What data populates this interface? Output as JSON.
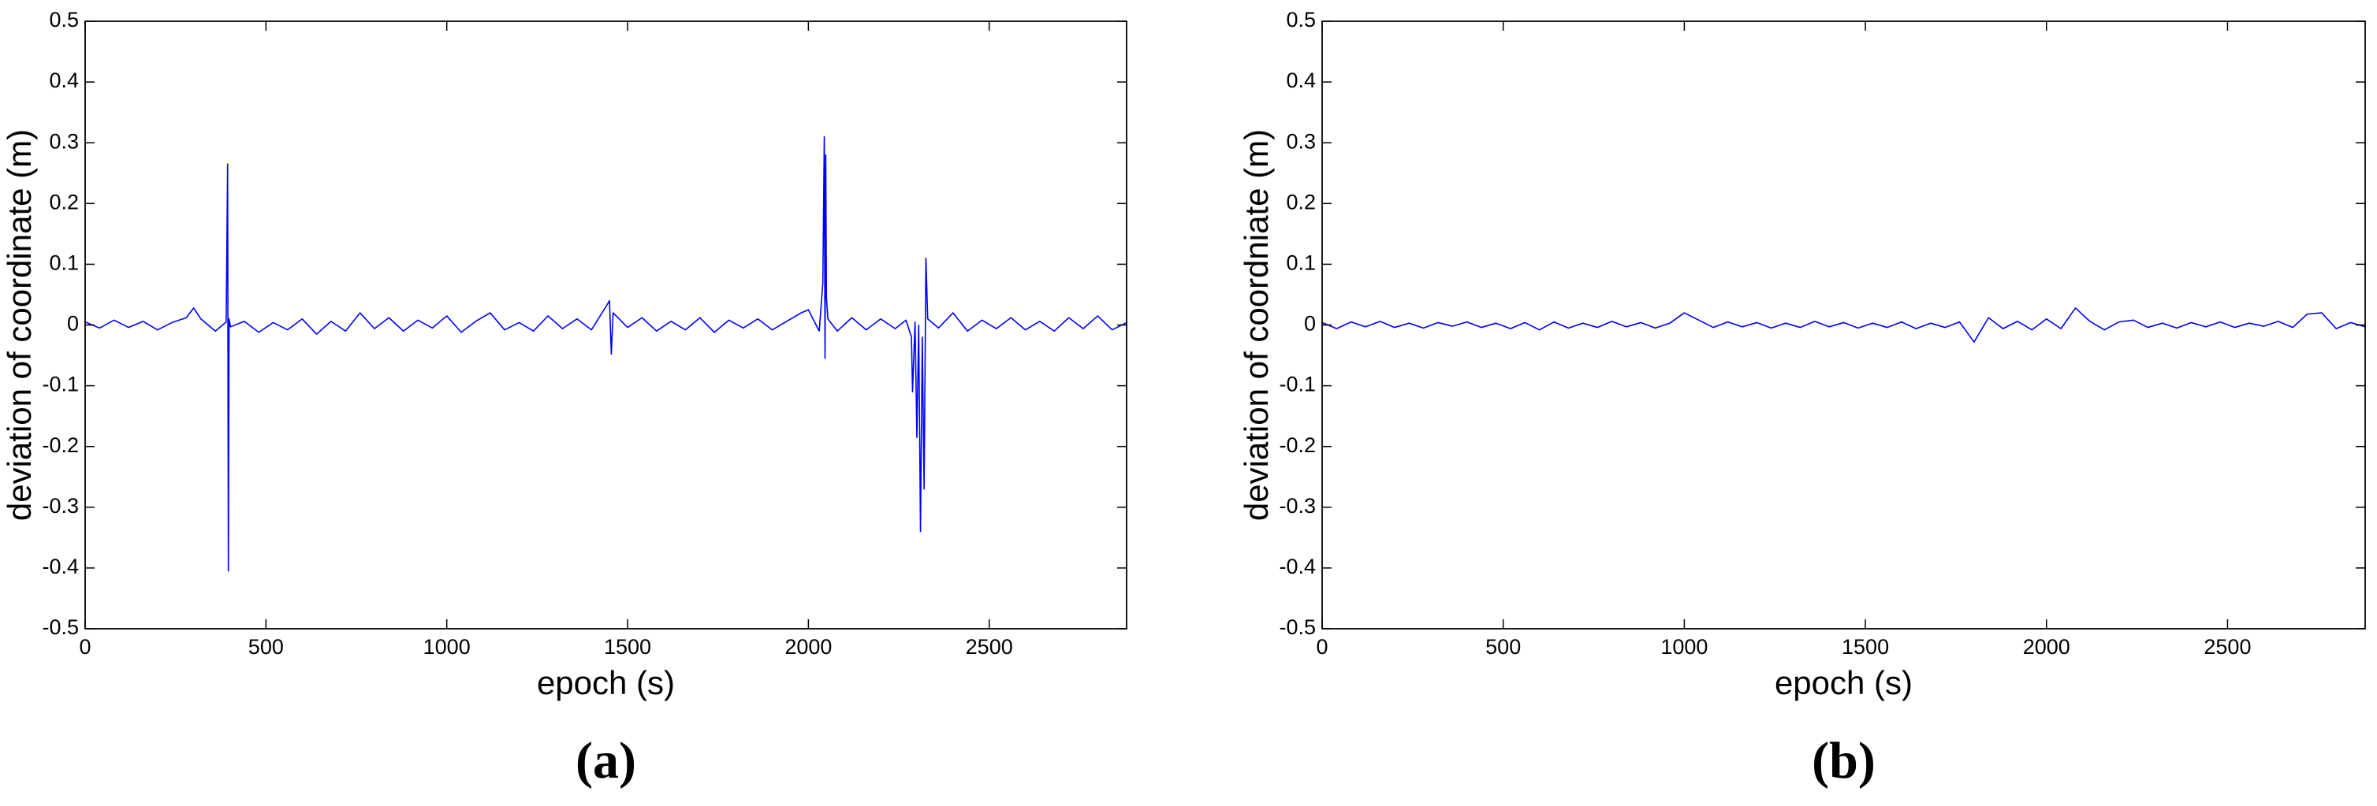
{
  "chart_data": [
    {
      "type": "line",
      "caption": "(a)",
      "xlabel": "epoch (s)",
      "ylabel": "deviation of coordinate (m)",
      "color": "#0000ff",
      "xlim": [
        0,
        2880
      ],
      "xticks": [
        0,
        500,
        1000,
        1500,
        2000,
        2500
      ],
      "ylim": [
        -0.5,
        0.5
      ],
      "yticks": [
        -0.5,
        -0.4,
        -0.3,
        -0.2,
        -0.1,
        0,
        0.1,
        0.2,
        0.3,
        0.4,
        0.5
      ],
      "x": [
        0,
        40,
        80,
        120,
        160,
        200,
        240,
        280,
        300,
        320,
        360,
        390,
        394,
        396,
        398,
        402,
        440,
        480,
        520,
        560,
        600,
        640,
        680,
        720,
        760,
        800,
        840,
        880,
        920,
        960,
        1000,
        1040,
        1080,
        1120,
        1160,
        1200,
        1240,
        1280,
        1320,
        1360,
        1400,
        1440,
        1450,
        1455,
        1460,
        1500,
        1540,
        1580,
        1620,
        1660,
        1700,
        1740,
        1780,
        1820,
        1860,
        1900,
        1940,
        1980,
        2000,
        2030,
        2040,
        2044,
        2046,
        2048,
        2050,
        2054,
        2080,
        2120,
        2160,
        2200,
        2240,
        2270,
        2285,
        2288,
        2295,
        2300,
        2305,
        2310,
        2315,
        2320,
        2325,
        2330,
        2360,
        2400,
        2440,
        2480,
        2520,
        2560,
        2600,
        2640,
        2680,
        2720,
        2760,
        2800,
        2840,
        2880
      ],
      "values": [
        0.005,
        -0.005,
        0.008,
        -0.004,
        0.006,
        -0.008,
        0.004,
        0.012,
        0.028,
        0.01,
        -0.01,
        0.005,
        0.265,
        -0.405,
        0.01,
        -0.003,
        0.006,
        -0.012,
        0.004,
        -0.008,
        0.01,
        -0.015,
        0.006,
        -0.01,
        0.02,
        -0.006,
        0.012,
        -0.01,
        0.008,
        -0.005,
        0.015,
        -0.012,
        0.006,
        0.02,
        -0.008,
        0.004,
        -0.01,
        0.015,
        -0.006,
        0.01,
        -0.008,
        0.03,
        0.04,
        -0.048,
        0.02,
        -0.004,
        0.012,
        -0.01,
        0.006,
        -0.008,
        0.012,
        -0.012,
        0.008,
        -0.005,
        0.01,
        -0.008,
        0.006,
        0.02,
        0.025,
        -0.01,
        0.07,
        0.31,
        -0.055,
        0.28,
        0.045,
        0.01,
        -0.01,
        0.012,
        -0.008,
        0.01,
        -0.006,
        0.008,
        -0.02,
        -0.11,
        0.005,
        -0.185,
        0,
        -0.34,
        -0.02,
        -0.27,
        0.11,
        0.01,
        -0.005,
        0.02,
        -0.01,
        0.008,
        -0.006,
        0.012,
        -0.008,
        0.006,
        -0.01,
        0.012,
        -0.006,
        0.015,
        -0.008,
        0.004
      ]
    },
    {
      "type": "line",
      "caption": "(b)",
      "xlabel": "epoch (s)",
      "ylabel": "deviation of coordniate (m)",
      "color": "#0000ff",
      "xlim": [
        0,
        2880
      ],
      "xticks": [
        0,
        500,
        1000,
        1500,
        2000,
        2500
      ],
      "ylim": [
        -0.5,
        0.5
      ],
      "yticks": [
        -0.5,
        -0.4,
        -0.3,
        -0.2,
        -0.1,
        0,
        0.1,
        0.2,
        0.3,
        0.4,
        0.5
      ],
      "x": [
        0,
        40,
        80,
        120,
        160,
        200,
        240,
        280,
        320,
        360,
        400,
        440,
        480,
        520,
        560,
        600,
        640,
        680,
        720,
        760,
        800,
        840,
        880,
        920,
        960,
        1000,
        1040,
        1080,
        1120,
        1160,
        1200,
        1240,
        1280,
        1320,
        1360,
        1400,
        1440,
        1480,
        1520,
        1560,
        1600,
        1640,
        1680,
        1720,
        1760,
        1800,
        1840,
        1880,
        1920,
        1960,
        2000,
        2040,
        2080,
        2120,
        2160,
        2200,
        2240,
        2280,
        2320,
        2360,
        2400,
        2440,
        2480,
        2520,
        2560,
        2600,
        2640,
        2680,
        2720,
        2760,
        2800,
        2840,
        2880
      ],
      "values": [
        0.004,
        -0.006,
        0.005,
        -0.003,
        0.006,
        -0.004,
        0.003,
        -0.005,
        0.004,
        -0.002,
        0.005,
        -0.004,
        0.003,
        -0.006,
        0.004,
        -0.008,
        0.005,
        -0.005,
        0.003,
        -0.004,
        0.006,
        -0.003,
        0.004,
        -0.005,
        0.003,
        0.02,
        0.008,
        -0.004,
        0.005,
        -0.003,
        0.004,
        -0.005,
        0.003,
        -0.004,
        0.006,
        -0.003,
        0.004,
        -0.005,
        0.003,
        -0.004,
        0.005,
        -0.006,
        0.003,
        -0.004,
        0.005,
        -0.028,
        0.012,
        -0.006,
        0.006,
        -0.008,
        0.01,
        -0.006,
        0.028,
        0.006,
        -0.008,
        0.005,
        0.008,
        -0.004,
        0.003,
        -0.005,
        0.004,
        -0.003,
        0.005,
        -0.004,
        0.003,
        -0.002,
        0.006,
        -0.004,
        0.018,
        0.02,
        -0.006,
        0.004,
        -0.003
      ]
    }
  ]
}
